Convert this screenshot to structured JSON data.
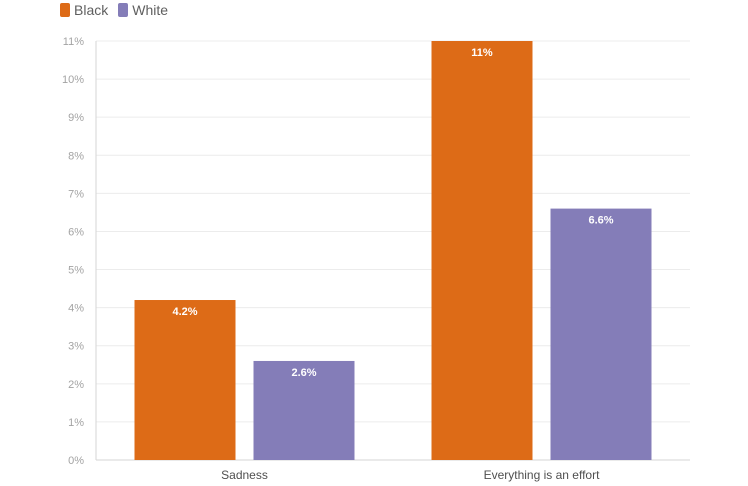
{
  "chart_data": {
    "type": "bar",
    "categories": [
      "Sadness",
      "Everything is an effort"
    ],
    "series": [
      {
        "name": "Black",
        "color": "#dd6b17",
        "values": [
          4.2,
          11
        ],
        "value_labels": [
          "4.2%",
          "11%"
        ]
      },
      {
        "name": "White",
        "color": "#847db8",
        "values": [
          2.6,
          6.6
        ],
        "value_labels": [
          "2.6%",
          "6.6%"
        ]
      }
    ],
    "title": "",
    "xlabel": "",
    "ylabel": "",
    "ylim": [
      0,
      11
    ],
    "y_ticks": [
      0,
      1,
      2,
      3,
      4,
      5,
      6,
      7,
      8,
      9,
      10,
      11
    ],
    "y_tick_labels": [
      "0%",
      "1%",
      "2%",
      "3%",
      "4%",
      "5%",
      "6%",
      "7%",
      "8%",
      "9%",
      "10%",
      "11%"
    ],
    "grid": true,
    "legend_position": "top-left"
  }
}
